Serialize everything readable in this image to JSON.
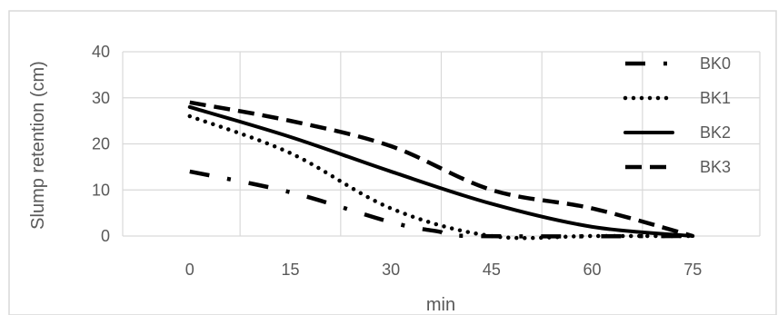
{
  "chart_data": {
    "type": "line",
    "title": "",
    "xlabel": "min",
    "ylabel": "Slump retention (cm)",
    "x": [
      0,
      15,
      30,
      45,
      60,
      75
    ],
    "x_ticks": [
      "0",
      "15",
      "30",
      "45",
      "60",
      "75"
    ],
    "y_ticks": [
      "0",
      "10",
      "20",
      "30",
      "40"
    ],
    "xlim": [
      -10,
      85
    ],
    "ylim": [
      0,
      40
    ],
    "grid": true,
    "legend_position": "top-right",
    "series": [
      {
        "name": "BK0",
        "style": "dash-dot",
        "color": "#000000",
        "points": [
          [
            0,
            14
          ],
          [
            15,
            9.5
          ],
          [
            30,
            3
          ],
          [
            37,
            1
          ],
          [
            42,
            0
          ],
          [
            75,
            0
          ]
        ]
      },
      {
        "name": "BK1",
        "style": "dotted",
        "color": "#000000",
        "points": [
          [
            0,
            26
          ],
          [
            15,
            18
          ],
          [
            30,
            6
          ],
          [
            45,
            0
          ],
          [
            60,
            0
          ],
          [
            75,
            0
          ]
        ]
      },
      {
        "name": "BK2",
        "style": "solid",
        "color": "#000000",
        "points": [
          [
            0,
            28
          ],
          [
            15,
            21.5
          ],
          [
            30,
            14
          ],
          [
            45,
            7
          ],
          [
            60,
            2
          ],
          [
            75,
            0
          ]
        ]
      },
      {
        "name": "BK3",
        "style": "dashed",
        "color": "#000000",
        "points": [
          [
            0,
            29
          ],
          [
            15,
            25
          ],
          [
            30,
            19.5
          ],
          [
            45,
            10
          ],
          [
            60,
            6
          ],
          [
            75,
            0
          ]
        ]
      }
    ]
  }
}
